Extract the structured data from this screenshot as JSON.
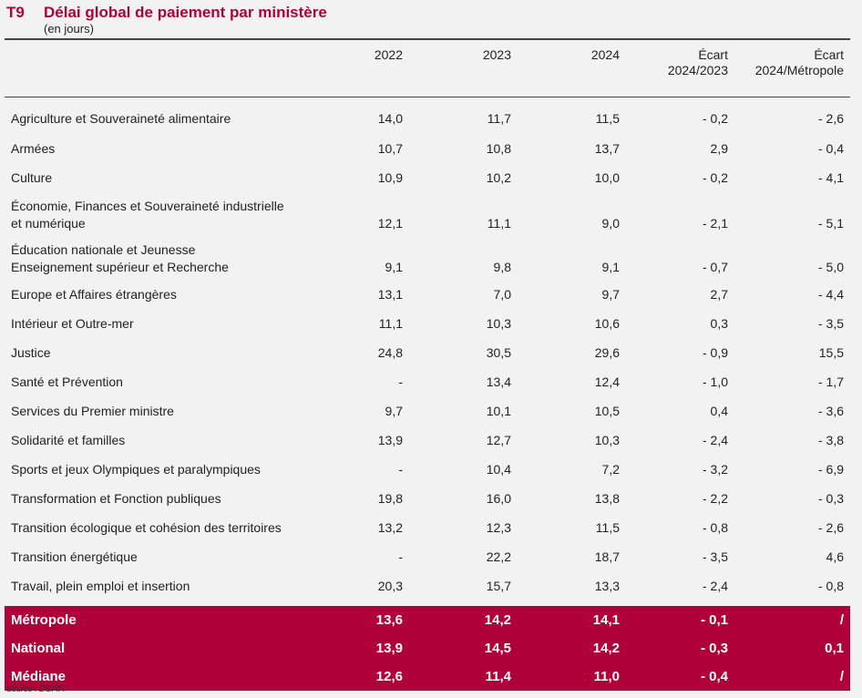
{
  "title": {
    "code": "T9",
    "text": "Délai global de paiement par ministère",
    "unit": "(en jours)"
  },
  "columns": [
    "",
    "2022",
    "2023",
    "2024",
    "Écart\n2024/2023",
    "Écart\n2024/Métropole"
  ],
  "rows": [
    {
      "label": "Agriculture et Souveraineté alimentaire",
      "values": [
        "14,0",
        "11,7",
        "11,5",
        "- 0,2",
        "- 2,6"
      ]
    },
    {
      "label": "Armées",
      "values": [
        "10,7",
        "10,8",
        "13,7",
        "2,9",
        "- 0,4"
      ]
    },
    {
      "label": "Culture",
      "values": [
        "10,9",
        "10,2",
        "10,0",
        "- 0,2",
        "- 4,1"
      ]
    },
    {
      "label": "Économie, Finances et Souveraineté industrielle\net numérique",
      "values": [
        "12,1",
        "11,1",
        "9,0",
        "- 2,1",
        "- 5,1"
      ],
      "tall": true
    },
    {
      "label": "Éducation nationale et Jeunesse\nEnseignement supérieur et Recherche",
      "values": [
        "9,1",
        "9,8",
        "9,1",
        "- 0,7",
        "- 5,0"
      ],
      "tall": true
    },
    {
      "label": "Europe et Affaires étrangères",
      "values": [
        "13,1",
        "7,0",
        "9,7",
        "2,7",
        "- 4,4"
      ]
    },
    {
      "label": "Intérieur et Outre-mer",
      "values": [
        "11,1",
        "10,3",
        "10,6",
        "0,3",
        "- 3,5"
      ]
    },
    {
      "label": "Justice",
      "values": [
        "24,8",
        "30,5",
        "29,6",
        "- 0,9",
        "15,5"
      ]
    },
    {
      "label": "Santé et Prévention",
      "values": [
        "-",
        "13,4",
        "12,4",
        "- 1,0",
        "- 1,7"
      ]
    },
    {
      "label": "Services du Premier ministre",
      "values": [
        "9,7",
        "10,1",
        "10,5",
        "0,4",
        "- 3,6"
      ]
    },
    {
      "label": "Solidarité et familles",
      "values": [
        "13,9",
        "12,7",
        "10,3",
        "- 2,4",
        "- 3,8"
      ]
    },
    {
      "label": "Sports et jeux Olympiques et paralympiques",
      "values": [
        "-",
        "10,4",
        "7,2",
        "- 3,2",
        "- 6,9"
      ]
    },
    {
      "label": "Transformation et Fonction publiques",
      "values": [
        "19,8",
        "16,0",
        "13,8",
        "- 2,2",
        "- 0,3"
      ]
    },
    {
      "label": "Transition écologique et cohésion des territoires",
      "values": [
        "13,2",
        "12,3",
        "11,5",
        "- 0,8",
        "- 2,6"
      ]
    },
    {
      "label": "Transition énergétique",
      "values": [
        "-",
        "22,2",
        "18,7",
        "- 3,5",
        "4,6"
      ]
    },
    {
      "label": "Travail, plein emploi et insertion",
      "values": [
        "20,3",
        "15,7",
        "13,3",
        "- 2,4",
        "- 0,8"
      ]
    }
  ],
  "totals": [
    {
      "label": "Métropole",
      "values": [
        "13,6",
        "14,2",
        "14,1",
        "- 0,1",
        "/"
      ]
    },
    {
      "label": "National",
      "values": [
        "13,9",
        "14,5",
        "14,2",
        "- 0,3",
        "0,1"
      ]
    },
    {
      "label": "Médiane",
      "values": [
        "12,6",
        "11,4",
        "11,0",
        "- 0,4",
        "/"
      ]
    }
  ],
  "source": "Source : DGFiP.",
  "colors": {
    "accent": "#b0003a",
    "background": "#f2f2f2"
  }
}
